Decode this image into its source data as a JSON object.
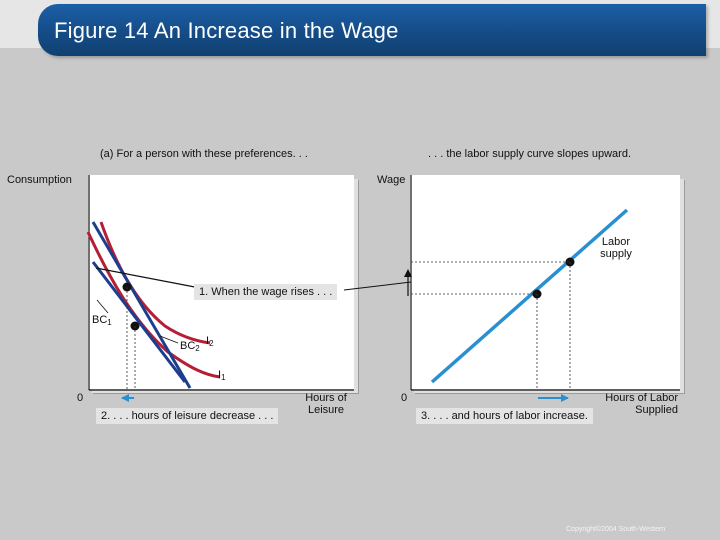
{
  "title": "Figure 14 An Increase in the Wage",
  "left_panel": {
    "caption": "(a) For a person with these preferences. . .",
    "y_axis_label": "Consumption",
    "x_axis_label_line1": "Hours of",
    "x_axis_label_line2": "Leisure",
    "origin": "0",
    "bc1": "BC",
    "bc1_sub": "1",
    "bc2": "BC",
    "bc2_sub": "2",
    "i1": "I",
    "i1_sub": "1",
    "i2": "I",
    "i2_sub": "2",
    "note_wage": "1. When the wage rises . . .",
    "note_leisure": "2. . . . hours of leisure decrease . . ."
  },
  "right_panel": {
    "caption": ". . . the labor supply curve slopes upward.",
    "y_axis_label": "Wage",
    "x_axis_label_line1": "Hours of Labor",
    "x_axis_label_line2": "Supplied",
    "origin": "0",
    "curve_label_line1": "Labor",
    "curve_label_line2": "supply",
    "note_labor": "3. . . . and hours of labor increase."
  },
  "colors": {
    "title_bar": "#154c87",
    "indifference_curves": "#b51f35",
    "budget_constraints": "#1d3d8f",
    "labor_supply": "#2a8fd1",
    "arrow": "#2a8fd1"
  },
  "copyright": "Copyright©2004 South-Western"
}
